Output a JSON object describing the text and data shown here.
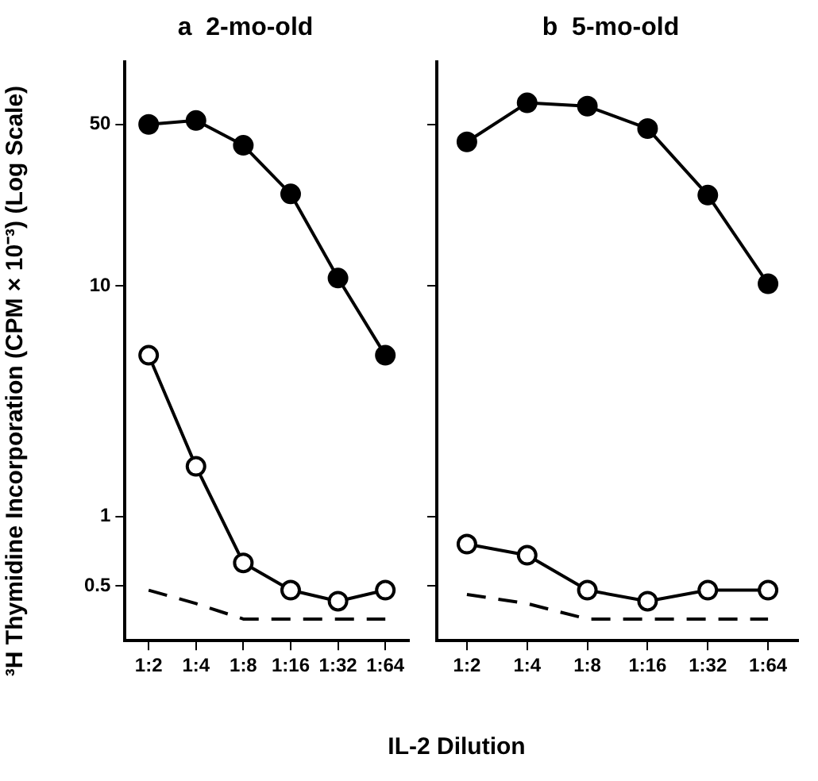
{
  "chart_data": [
    {
      "type": "line",
      "title": "a  2-mo-old",
      "xlabel": "IL-2 Dilution",
      "ylabel": "³H Thymidine Incorporation (CPM × 10⁻³) (Log Scale)",
      "categories": [
        "1:2",
        "1:4",
        "1:8",
        "1:16",
        "1:32",
        "1:64"
      ],
      "log": "y",
      "ylim": [
        0.29,
        93
      ],
      "yticks": [
        0.5,
        1,
        10,
        50
      ],
      "grid": false,
      "legend": false,
      "series": [
        {
          "color": "#000000",
          "marker": "circle",
          "line_style": "solid",
          "values": [
            50,
            52,
            40.6,
            25,
            10.8,
            5.0
          ]
        },
        {
          "color": "#000000",
          "colors": [
            "#ffffff",
            "#ffffff",
            "#ffffff",
            "#ffffff",
            "#ffffff",
            "#ffffff"
          ],
          "marker": "circle",
          "line_style": "solid",
          "values": [
            5.0,
            1.65,
            0.63,
            0.48,
            0.43,
            0.48
          ]
        },
        {
          "color": "#000000",
          "marker": "none",
          "line_style": "dashed",
          "values": [
            0.48,
            0.42,
            0.36,
            0.36,
            0.36,
            0.36
          ]
        }
      ]
    },
    {
      "type": "line",
      "title": "b  5-mo-old",
      "categories": [
        "1:2",
        "1:4",
        "1:8",
        "1:16",
        "1:32",
        "1:64"
      ],
      "log": "y",
      "ylim": [
        0.29,
        93
      ],
      "yticks": [
        0.5,
        1,
        10,
        50
      ],
      "grid": false,
      "legend": false,
      "tick_labels": "x",
      "series": [
        {
          "color": "#000000",
          "marker": "circle",
          "line_style": "solid",
          "values": [
            42,
            62,
            60,
            48,
            24.7,
            10.2
          ]
        },
        {
          "color": "#000000",
          "colors": [
            "#ffffff",
            "#ffffff",
            "#ffffff",
            "#ffffff",
            "#ffffff",
            "#ffffff"
          ],
          "marker": "circle",
          "line_style": "solid",
          "values": [
            0.76,
            0.68,
            0.48,
            0.43,
            0.48,
            0.48
          ]
        },
        {
          "color": "#000000",
          "marker": "none",
          "line_style": "dashed",
          "values": [
            0.46,
            0.42,
            0.36,
            0.36,
            0.36,
            0.36
          ]
        }
      ]
    }
  ]
}
